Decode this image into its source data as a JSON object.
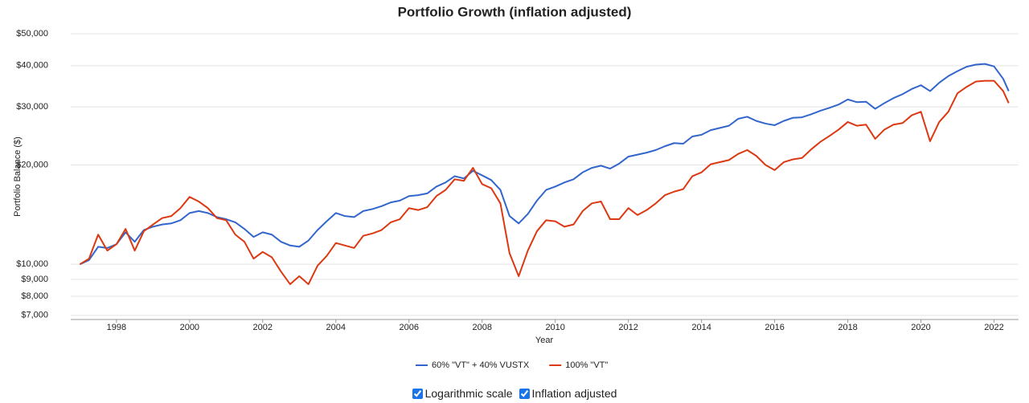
{
  "chart_data": {
    "type": "line",
    "title": "Portfolio Growth (inflation adjusted)",
    "y_label": "Portfolio Balance ($)",
    "x_label": "Year",
    "log_scale": true,
    "grid": true,
    "legend": "bottom",
    "xlim": [
      1996.75,
      2022.67
    ],
    "xticks": [
      1998,
      2000,
      2002,
      2004,
      2006,
      2008,
      2010,
      2012,
      2014,
      2016,
      2018,
      2020,
      2022
    ],
    "ylim": [
      6800,
      50000
    ],
    "yticks": [
      {
        "value": 7000,
        "label": "$7,000"
      },
      {
        "value": 8000,
        "label": "$8,000"
      },
      {
        "value": 9000,
        "label": "$9,000"
      },
      {
        "value": 10000,
        "label": "$10,000"
      },
      {
        "value": 20000,
        "label": "$20,000"
      },
      {
        "value": 30000,
        "label": "$30,000"
      },
      {
        "value": 40000,
        "label": "$40,000"
      },
      {
        "value": 50000,
        "label": "$50,000"
      }
    ],
    "x": [
      1997,
      1997.25,
      1997.5,
      1997.75,
      1998,
      1998.25,
      1998.5,
      1998.75,
      1999,
      1999.25,
      1999.5,
      1999.75,
      2000,
      2000.25,
      2000.5,
      2000.75,
      2001,
      2001.25,
      2001.5,
      2001.75,
      2002,
      2002.25,
      2002.5,
      2002.75,
      2003,
      2003.25,
      2003.5,
      2003.75,
      2004,
      2004.25,
      2004.5,
      2004.75,
      2005,
      2005.25,
      2005.5,
      2005.75,
      2006,
      2006.25,
      2006.5,
      2006.75,
      2007,
      2007.25,
      2007.5,
      2007.75,
      2008,
      2008.25,
      2008.5,
      2008.75,
      2009,
      2009.25,
      2009.5,
      2009.75,
      2010,
      2010.25,
      2010.5,
      2010.75,
      2011,
      2011.25,
      2011.5,
      2011.75,
      2012,
      2012.25,
      2012.5,
      2012.75,
      2013,
      2013.25,
      2013.5,
      2013.75,
      2014,
      2014.25,
      2014.5,
      2014.75,
      2015,
      2015.25,
      2015.5,
      2015.75,
      2016,
      2016.25,
      2016.5,
      2016.75,
      2017,
      2017.25,
      2017.5,
      2017.75,
      2018,
      2018.25,
      2018.5,
      2018.75,
      2019,
      2019.25,
      2019.5,
      2019.75,
      2020,
      2020.25,
      2020.5,
      2020.75,
      2021,
      2021.25,
      2021.5,
      2021.75,
      2022,
      2022.25,
      2022.4
    ],
    "series": [
      {
        "name": "60% \"VT\" + 40% VUSTX",
        "color": "#3366cc",
        "values": [
          10000,
          10300,
          11300,
          11200,
          11500,
          12500,
          11700,
          12700,
          13000,
          13200,
          13300,
          13600,
          14300,
          14500,
          14300,
          13900,
          13700,
          13400,
          12800,
          12100,
          12500,
          12300,
          11700,
          11400,
          11300,
          11800,
          12700,
          13500,
          14300,
          14000,
          13900,
          14500,
          14700,
          15000,
          15400,
          15600,
          16100,
          16200,
          16400,
          17200,
          17700,
          18500,
          18200,
          19200,
          18600,
          18000,
          16800,
          14000,
          13300,
          14200,
          15600,
          16800,
          17200,
          17700,
          18100,
          19000,
          19600,
          19900,
          19500,
          20200,
          21200,
          21500,
          21800,
          22200,
          22800,
          23300,
          23200,
          24400,
          24700,
          25500,
          25900,
          26300,
          27600,
          28000,
          27200,
          26700,
          26400,
          27200,
          27800,
          27900,
          28500,
          29200,
          29800,
          30500,
          31600,
          31000,
          31100,
          29600,
          30800,
          31900,
          32800,
          34000,
          34900,
          33500,
          35500,
          37200,
          38500,
          39700,
          40300,
          40500,
          39800,
          36500,
          33500
        ]
      },
      {
        "name": "100% \"VT\"",
        "color": "#dc3912",
        "values": [
          10000,
          10400,
          12300,
          11000,
          11500,
          12800,
          11000,
          12600,
          13200,
          13800,
          14000,
          14800,
          16000,
          15500,
          14800,
          13800,
          13600,
          12300,
          11700,
          10400,
          10900,
          10500,
          9500,
          8700,
          9200,
          8700,
          9900,
          10600,
          11600,
          11400,
          11200,
          12200,
          12400,
          12700,
          13400,
          13700,
          14800,
          14600,
          14900,
          16100,
          16800,
          18100,
          17900,
          19600,
          17500,
          17000,
          15300,
          10800,
          9200,
          11000,
          12600,
          13600,
          13500,
          13000,
          13200,
          14500,
          15300,
          15500,
          13700,
          13700,
          14800,
          14100,
          14600,
          15300,
          16200,
          16600,
          16900,
          18500,
          19000,
          20100,
          20400,
          20700,
          21600,
          22200,
          21300,
          20000,
          19300,
          20400,
          20800,
          21000,
          22300,
          23500,
          24500,
          25600,
          27000,
          26300,
          26500,
          24000,
          25600,
          26500,
          26800,
          28300,
          29000,
          23600,
          27000,
          29000,
          33000,
          34500,
          35800,
          36000,
          36000,
          33500,
          30800
        ]
      }
    ]
  },
  "controls": [
    {
      "label": "Logarithmic scale",
      "checked": true
    },
    {
      "label": "Inflation adjusted",
      "checked": true
    }
  ]
}
